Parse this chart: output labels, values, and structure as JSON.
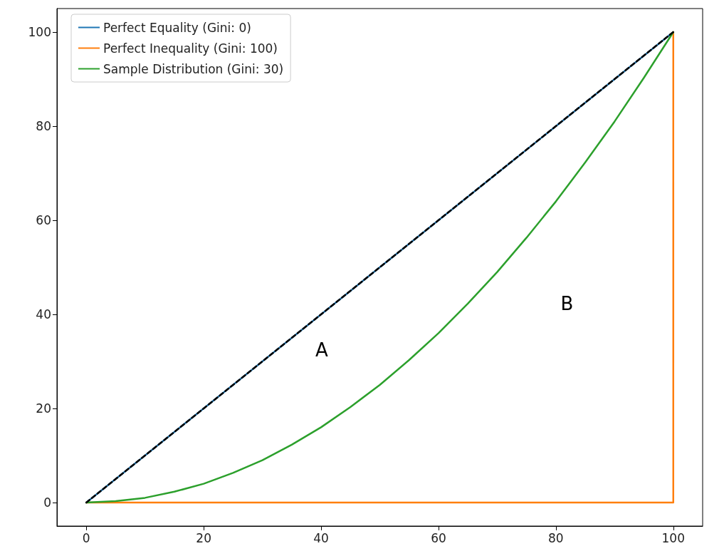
{
  "chart_data": {
    "type": "line",
    "xlim": [
      -5,
      105
    ],
    "ylim": [
      -5,
      105
    ],
    "xticks": [
      0,
      20,
      40,
      60,
      80,
      100
    ],
    "yticks": [
      0,
      20,
      40,
      60,
      80,
      100
    ],
    "grid": false,
    "legend": "top left",
    "marker": "none",
    "series": [
      {
        "name": "Perfect Equality (Gini: 0)",
        "color": "#1f77b4",
        "x": [
          0,
          100
        ],
        "values": [
          0,
          100
        ]
      },
      {
        "name": "Perfect Inequality (Gini: 100)",
        "color": "#ff7f0e",
        "x": [
          0,
          100,
          100
        ],
        "values": [
          0,
          0,
          100
        ]
      },
      {
        "name": "Sample Distribution (Gini: 30)",
        "color": "#2ca02c",
        "x": [
          0,
          5,
          10,
          15,
          20,
          25,
          30,
          35,
          40,
          45,
          50,
          55,
          60,
          65,
          70,
          75,
          80,
          85,
          90,
          95,
          100
        ],
        "values": [
          0,
          0.3,
          1,
          2.3,
          4,
          6.3,
          9,
          12.3,
          16,
          20.3,
          25,
          30.3,
          36,
          42.3,
          49,
          56.3,
          64,
          72.3,
          81,
          90.3,
          100
        ]
      },
      {
        "color": "#000000",
        "line_style": "dashed",
        "x": [
          0,
          100
        ],
        "values": [
          0,
          100
        ]
      }
    ],
    "annotations": [
      "A",
      "B"
    ]
  }
}
